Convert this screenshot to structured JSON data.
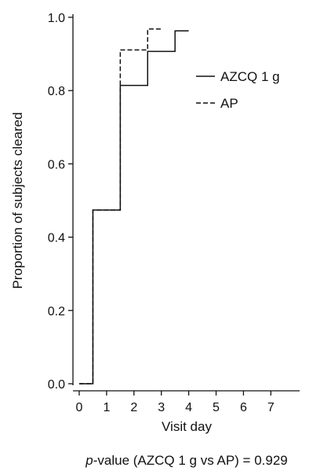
{
  "chart_data": {
    "type": "line",
    "subtype": "step",
    "title": "",
    "xlabel": "Visit day",
    "ylabel": "Proportion of subjects cleared",
    "xlim": [
      0,
      8
    ],
    "ylim": [
      0,
      1.0
    ],
    "x_ticks": [
      "0",
      "1",
      "2",
      "3",
      "4",
      "5",
      "6",
      "7"
    ],
    "y_ticks": [
      "0.0",
      "0.2",
      "0.4",
      "0.6",
      "0.8",
      "1.0"
    ],
    "grid": false,
    "legend_position": "right",
    "series": [
      {
        "name": "AZCQ 1 g",
        "line_style": "solid",
        "color": "#111111",
        "steps": [
          [
            0,
            0.0
          ],
          [
            0.5,
            0.474
          ],
          [
            1.5,
            0.814
          ],
          [
            2.5,
            0.907
          ],
          [
            3.5,
            0.963
          ],
          [
            4.0,
            0.963
          ]
        ]
      },
      {
        "name": "AP",
        "line_style": "dashed",
        "color": "#111111",
        "steps": [
          [
            0,
            0.0
          ],
          [
            0.5,
            0.474
          ],
          [
            1.5,
            0.911
          ],
          [
            2.5,
            0.968
          ],
          [
            3.0,
            0.968
          ]
        ]
      }
    ],
    "footnote": {
      "italic_part": "p",
      "rest": "-value (AZCQ 1 g vs AP) = 0.929"
    }
  }
}
